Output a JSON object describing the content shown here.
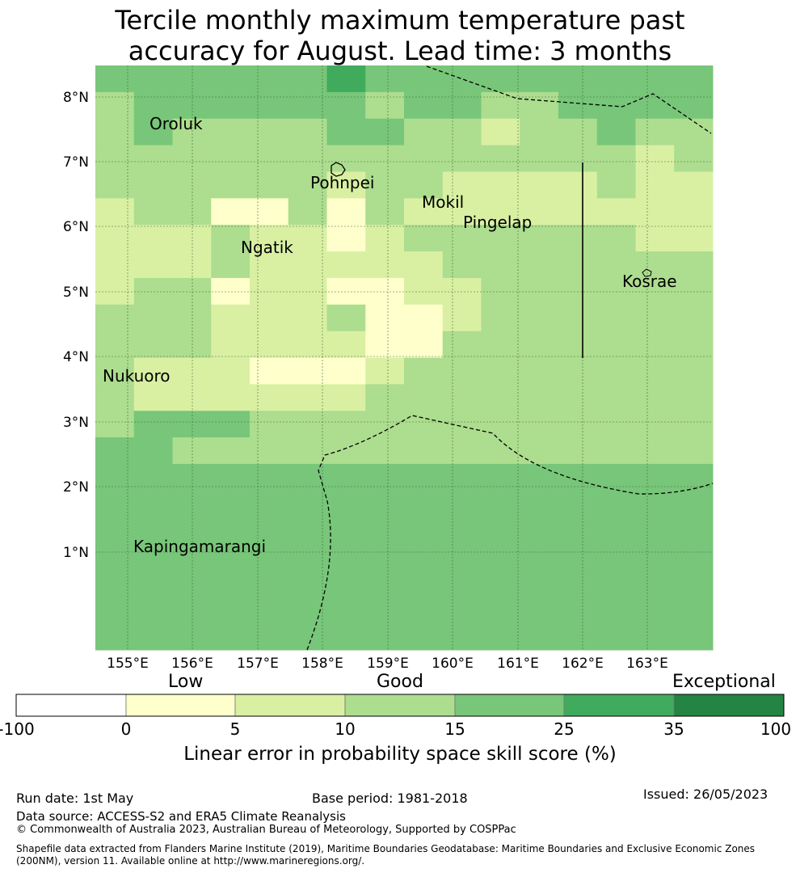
{
  "title": {
    "line1": "Tercile monthly maximum temperature past",
    "line2": "accuracy for August. Lead time: 3 months"
  },
  "map": {
    "lon_labels": [
      "155°E",
      "156°E",
      "157°E",
      "158°E",
      "159°E",
      "160°E",
      "161°E",
      "162°E",
      "163°E"
    ],
    "lat_labels": [
      "8°N",
      "7°N",
      "6°N",
      "5°N",
      "4°N",
      "3°N",
      "2°N",
      "1°N"
    ],
    "place_labels": [
      {
        "name": "Oroluk"
      },
      {
        "name": "Pohnpei"
      },
      {
        "name": "Mokil"
      },
      {
        "name": "Pingelap"
      },
      {
        "name": "Ngatik"
      },
      {
        "name": "Kosrae"
      },
      {
        "name": "Nukuoro"
      },
      {
        "name": "Kapingamarangi"
      }
    ]
  },
  "colorbar": {
    "category_words": [
      "Low",
      "Good",
      "Exceptional"
    ],
    "tick_labels": [
      "-100",
      "0",
      "5",
      "10",
      "15",
      "25",
      "35",
      "100"
    ],
    "colors": [
      "#ffffff",
      "#ffffcc",
      "#d9f0a3",
      "#addd8e",
      "#78c679",
      "#41ab5d",
      "#238443"
    ],
    "label": "Linear error in probability space skill score (%)"
  },
  "footer": {
    "run_date": "Run date: 1st May",
    "base_period": "Base period: 1981-2018",
    "issued": "Issued: 26/05/2023",
    "data_source": "Data source: ACCESS-S2 and ERA5 Climate Reanalysis",
    "copyright": "© Commonwealth of Australia 2023, Australian Bureau of Meteorology, Supported by COSPPac",
    "shapefile": "Shapefile data extracted from Flanders Marine Institute (2019), Maritime Boundaries Geodatabase: Maritime Boundaries and Exclusive Economic Zones (200NM), version 11. Available online at http://www.marineregions.org/."
  },
  "grid_skill_classes": [
    "4444445444444444",
    "3444444344334444",
    "3433334433233433",
    "3333333333333323",
    "3333332332222322",
    "2331131322222222",
    "2223221233333322",
    "2223222223333333",
    "2331221122333333",
    "3332223112333333",
    "3332222113333333",
    "3222111233333333",
    "3222222333333333",
    "3444333333333333",
    "4433333333333333",
    "4444444444444444",
    "4444444444444444",
    "4444444444444444",
    "4444444444444444",
    "4444444444444444",
    "4444444444444444",
    "4444444444444444"
  ]
}
